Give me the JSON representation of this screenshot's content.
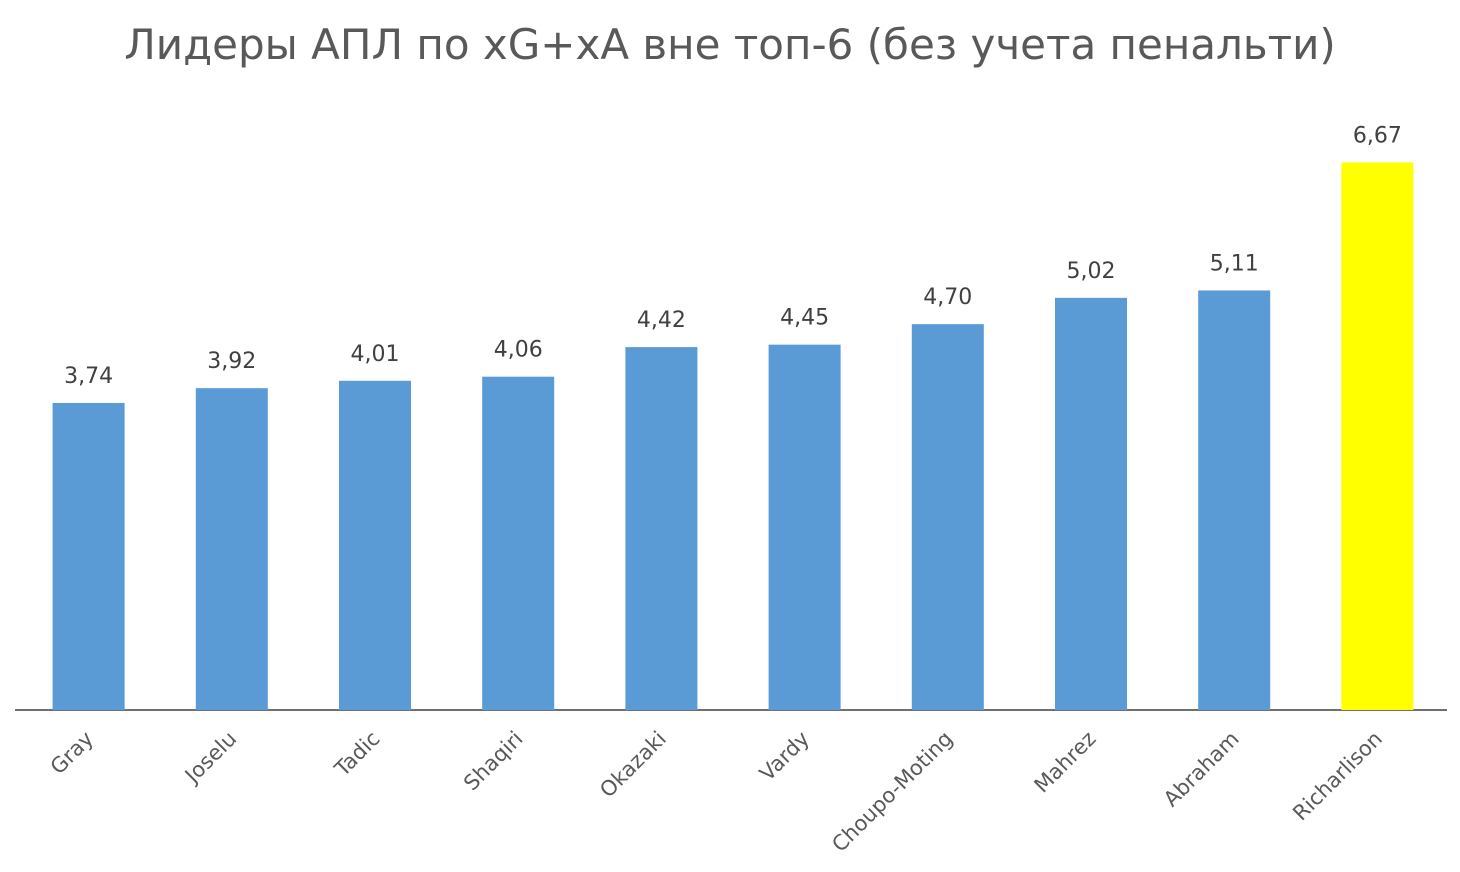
{
  "chart_data": {
    "type": "bar",
    "title": "Лидеры АПЛ по xG+xA вне топ-6 (без учета пенальти)",
    "xlabel": "",
    "ylabel": "",
    "categories": [
      "Gray",
      "Joselu",
      "Tadic",
      "Shaqiri",
      "Okazaki",
      "Vardy",
      "Choupo-Moting",
      "Mahrez",
      "Abraham",
      "Richarlison"
    ],
    "values": [
      3.74,
      3.92,
      4.01,
      4.06,
      4.42,
      4.45,
      4.7,
      5.02,
      5.11,
      6.67
    ],
    "value_labels": [
      "3,74",
      "3,92",
      "4,01",
      "4,06",
      "4,42",
      "4,45",
      "4,70",
      "5,02",
      "5,11",
      "6,67"
    ],
    "bar_colors": [
      "#5b9bd5",
      "#5b9bd5",
      "#5b9bd5",
      "#5b9bd5",
      "#5b9bd5",
      "#5b9bd5",
      "#5b9bd5",
      "#5b9bd5",
      "#5b9bd5",
      "#ffff00"
    ],
    "axis_color": "#404040",
    "grid": false,
    "legend": "none"
  }
}
